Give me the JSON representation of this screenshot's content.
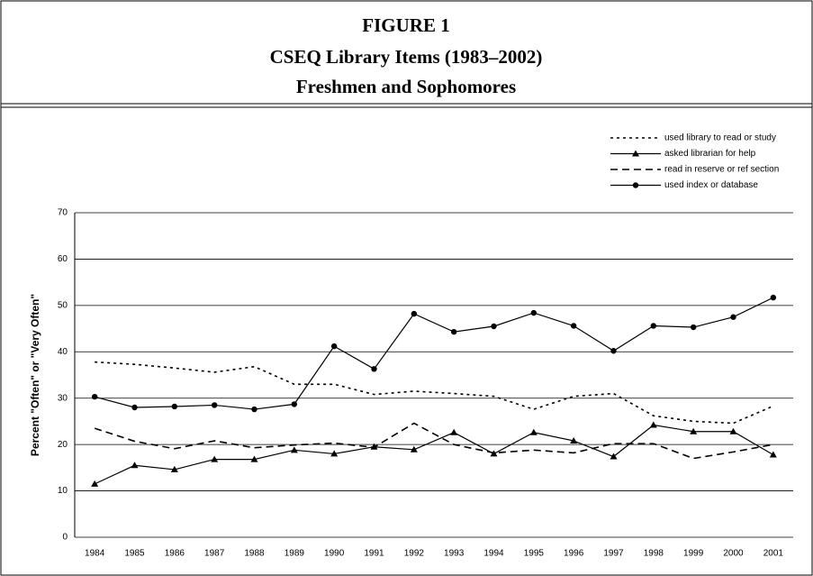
{
  "chart_data": {
    "type": "line",
    "figure_label": "FIGURE 1",
    "title": "CSEQ Library Items (1983–2002)",
    "subtitle": "Freshmen and Sophomores",
    "y_label": "Percent \"Often\" or \"Very Often\"",
    "categories": [
      "1984",
      "1985",
      "1986",
      "1987",
      "1988",
      "1989",
      "1990",
      "1991",
      "1992",
      "1993",
      "1994",
      "1995",
      "1996",
      "1997",
      "1998",
      "1999",
      "2000",
      "2001"
    ],
    "ylim": [
      0,
      70
    ],
    "yticks": [
      0,
      10,
      20,
      30,
      40,
      50,
      60,
      70
    ],
    "grid": true,
    "legend": "top-right",
    "series": [
      {
        "name": "used library to read or study",
        "color": "#000000",
        "dash": "dotted",
        "marker": "none",
        "values": [
          37.8,
          37.3,
          36.5,
          35.6,
          36.8,
          33.0,
          33.0,
          30.8,
          31.5,
          31.0,
          30.4,
          27.6,
          30.4,
          31.0,
          26.2,
          25.0,
          24.6,
          28.3
        ]
      },
      {
        "name": "asked librarian for help",
        "color": "#000000",
        "dash": "solid",
        "marker": "triangle",
        "values": [
          11.5,
          15.5,
          14.6,
          16.8,
          16.8,
          18.8,
          18.0,
          19.5,
          18.9,
          22.6,
          18.0,
          22.6,
          20.8,
          17.4,
          24.2,
          22.8,
          22.8,
          17.8
        ]
      },
      {
        "name": "read in reserve or ref section",
        "color": "#000000",
        "dash": "dashed",
        "marker": "none",
        "values": [
          23.5,
          20.7,
          19.1,
          20.8,
          19.3,
          19.9,
          20.3,
          19.4,
          24.6,
          20.0,
          18.2,
          18.8,
          18.2,
          20.2,
          20.2,
          17.0,
          18.4,
          20.0
        ]
      },
      {
        "name": "used index or database",
        "color": "#000000",
        "dash": "solid",
        "marker": "circle",
        "values": [
          30.3,
          28.0,
          28.2,
          28.5,
          27.6,
          28.7,
          41.2,
          36.3,
          48.2,
          44.3,
          45.5,
          48.4,
          45.6,
          40.2,
          45.6,
          45.3,
          47.5,
          51.7
        ]
      }
    ]
  }
}
